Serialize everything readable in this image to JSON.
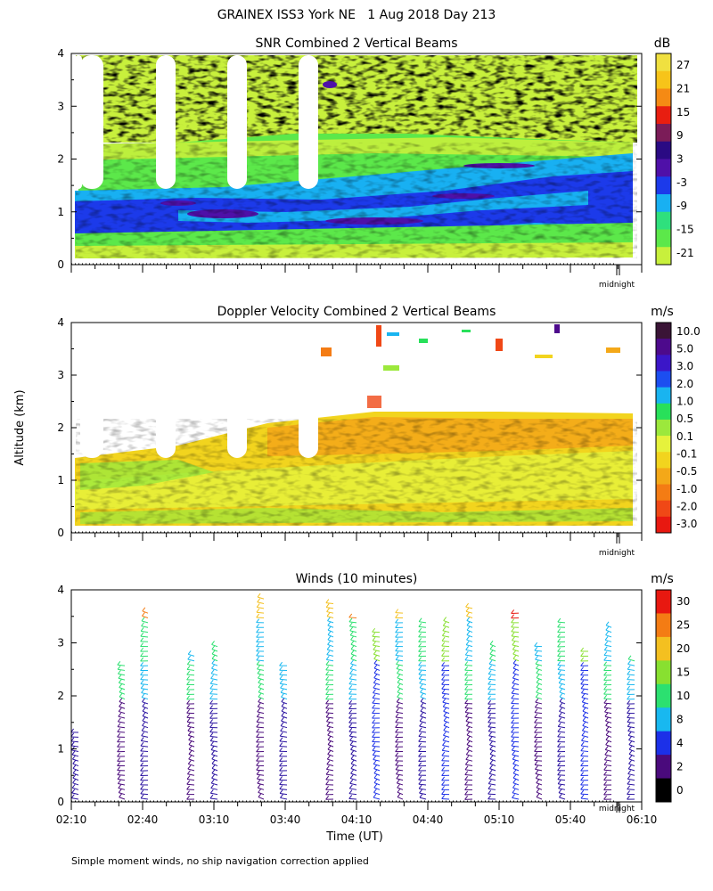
{
  "figure": {
    "title": "GRAINEX ISS3 York NE   1 Aug 2018 Day 213",
    "ylabel": "Altitude (km)",
    "xlabel": "Time (UT)",
    "footnote": "Simple moment winds, no ship navigation correction applied",
    "midnight_label": "midnight",
    "x_ticks": [
      "02:10",
      "02:40",
      "03:10",
      "03:40",
      "04:10",
      "04:40",
      "05:10",
      "05:40",
      "06:10"
    ],
    "y_ticks": [
      "0",
      "1",
      "2",
      "3",
      "4"
    ]
  },
  "chart_data": [
    {
      "type": "heatmap",
      "title": "SNR Combined 2 Vertical Beams",
      "units": "dB",
      "x_range": [
        "02:10",
        "06:10"
      ],
      "ylim": [
        0,
        4
      ],
      "colorbar": {
        "labels": [
          "27",
          "21",
          "15",
          "9",
          "3",
          "-3",
          "-9",
          "-15",
          "-21"
        ],
        "colors": [
          "#f0e040",
          "#f7c419",
          "#f58a14",
          "#e81e10",
          "#7b1c58",
          "#2a0a83",
          "#4f10a8",
          "#1c3aea",
          "#18b0f2",
          "#2fe07d",
          "#5ce84a",
          "#c8f03c"
        ]
      }
    },
    {
      "type": "heatmap",
      "title": "Doppler Velocity Combined 2 Vertical Beams",
      "units": "m/s",
      "x_range": [
        "02:10",
        "06:10"
      ],
      "ylim": [
        0,
        4
      ],
      "colorbar": {
        "labels": [
          "10.0",
          "5.0",
          "3.0",
          "2.0",
          "1.0",
          "0.5",
          "0.1",
          "-0.1",
          "-0.5",
          "-1.0",
          "-2.0",
          "-3.0"
        ],
        "colors": [
          "#3a1436",
          "#4d0a8c",
          "#3b16c8",
          "#1c4ef0",
          "#19b4f0",
          "#28e05a",
          "#9ce83c",
          "#e6f23c",
          "#f2d41e",
          "#f4a818",
          "#f47c14",
          "#f04816",
          "#e81810"
        ]
      }
    },
    {
      "type": "barbs",
      "title": "Winds (10 minutes)",
      "units": "m/s",
      "x_range": [
        "02:10",
        "06:10"
      ],
      "ylim": [
        0,
        4
      ],
      "colorbar": {
        "labels": [
          "30",
          "25",
          "20",
          "15",
          "10",
          "8",
          "4",
          "2",
          "0"
        ],
        "colors": [
          "#e81810",
          "#f47c14",
          "#f4c020",
          "#88e030",
          "#2ce070",
          "#18b8f0",
          "#1c30e8",
          "#4a0a7c",
          "#000000"
        ]
      }
    }
  ]
}
